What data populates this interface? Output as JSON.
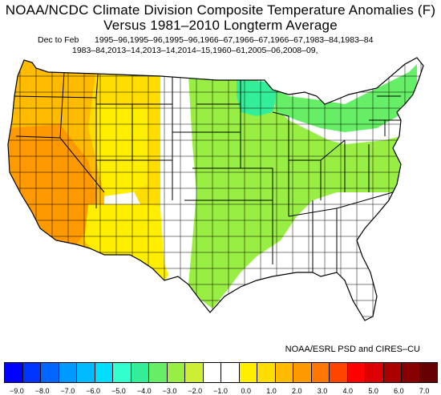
{
  "title": {
    "line1": "NOAA/NCDC Climate Division Composite Temperature Anomalies (F)",
    "line2": "Versus 1981–2010 Longterm Average"
  },
  "info": {
    "season_label": "Dec to Feb",
    "years_line1": "1995–96,1995–96,1995–96,1966–67,1966–67,1966–67,1983–84,1983–84",
    "years_line2": "1983–84,2013–14,2013–14,2014–15,1960–61,2005–06,2008–09,"
  },
  "credit": "NOAA/ESRL PSD and CIRES–CU",
  "map_regions": {
    "southwest": {
      "anomaly_range": "3.0 to 4.0",
      "color": "#ff9900"
    },
    "pacific_northwest_and_west": {
      "anomaly_range": "2.0 to 3.0",
      "color": "#ffbb00"
    },
    "rockies_west_texas": {
      "anomaly_range": "0.0 to 2.0",
      "color": "#ffee00"
    },
    "central_plains_southwest": {
      "anomaly_range": "-1.0 to 1.0",
      "color": "#ffffff"
    },
    "central_plains_midwest_east": {
      "anomaly_range": "-3.0 to -1.0",
      "color": "#99ee44"
    },
    "upper_midwest": {
      "anomaly_range": "-4.0 to -3.0",
      "color": "#33ee99"
    },
    "southeast": {
      "anomaly_range": "-1.0 to 0.0",
      "color": "#ffffff"
    }
  },
  "colorbar": {
    "colors": [
      "#0000ff",
      "#0033ff",
      "#0066ff",
      "#0099ff",
      "#00bbff",
      "#00ddff",
      "#33ffcc",
      "#33ee99",
      "#66ee66",
      "#99ee44",
      "#ccee33",
      "#ffffff",
      "#ffffff",
      "#ffee00",
      "#ffdd00",
      "#ffbb00",
      "#ff9900",
      "#ff7700",
      "#ff4400",
      "#ff0000",
      "#dd0000",
      "#aa0000",
      "#880000",
      "#660000"
    ],
    "ticks": [
      "−9.0",
      "−8.0",
      "−7.0",
      "−6.0",
      "−5.0",
      "−4.0",
      "−3.0",
      "−2.0",
      "−1.0",
      "0.0",
      "1.0",
      "2.0",
      "3.0",
      "4.0",
      "5.0",
      "6.0",
      "7.0"
    ]
  }
}
